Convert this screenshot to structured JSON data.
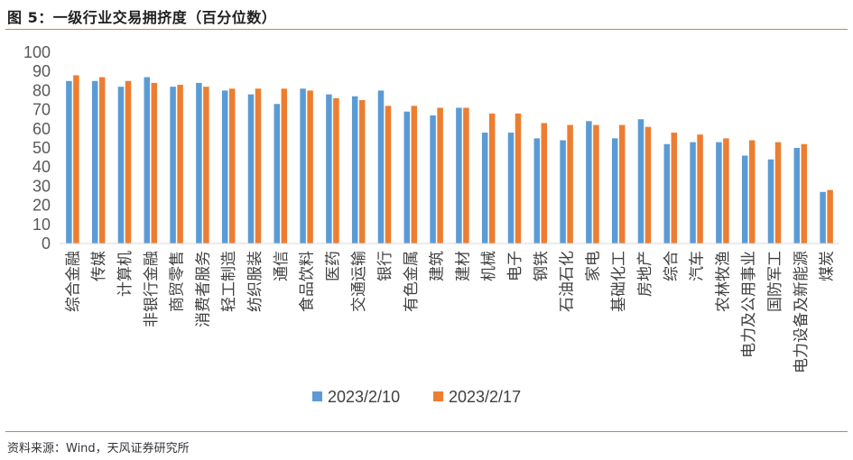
{
  "title": "图 5：一级行业交易拥挤度（百分位数）",
  "source": "资料来源：Wind，天风证券研究所",
  "colors": {
    "series1": "#5b9bd5",
    "series2": "#ed7d31",
    "axis": "#d9d9d9",
    "rule": "#c9873f"
  },
  "chart_data": {
    "type": "bar",
    "categories": [
      "综合金融",
      "传媒",
      "计算机",
      "非银行金融",
      "商贸零售",
      "消费者服务",
      "轻工制造",
      "纺织服装",
      "通信",
      "食品饮料",
      "医药",
      "交通运输",
      "银行",
      "有色金属",
      "建筑",
      "建材",
      "机械",
      "电子",
      "钢铁",
      "石油石化",
      "家电",
      "基础化工",
      "房地产",
      "综合",
      "汽车",
      "农林牧渔",
      "电力及公用事业",
      "国防军工",
      "电力设备及新能源",
      "煤炭"
    ],
    "series": [
      {
        "name": "2023/2/10",
        "values": [
          85,
          85,
          82,
          87,
          82,
          84,
          80,
          78,
          73,
          81,
          78,
          77,
          80,
          69,
          67,
          71,
          58,
          58,
          55,
          54,
          64,
          55,
          65,
          52,
          53,
          53,
          46,
          44,
          50,
          27
        ]
      },
      {
        "name": "2023/2/17",
        "values": [
          88,
          87,
          85,
          84,
          83,
          82,
          81,
          81,
          81,
          80,
          76,
          75,
          72,
          72,
          71,
          71,
          68,
          68,
          63,
          62,
          62,
          62,
          61,
          58,
          57,
          55,
          54,
          53,
          52,
          28
        ]
      }
    ],
    "ylim": [
      0,
      100
    ],
    "yticks": [
      0,
      10,
      20,
      30,
      40,
      50,
      60,
      70,
      80,
      90,
      100
    ],
    "grid": false,
    "legend": "bottom",
    "xlabel": "",
    "ylabel": ""
  }
}
